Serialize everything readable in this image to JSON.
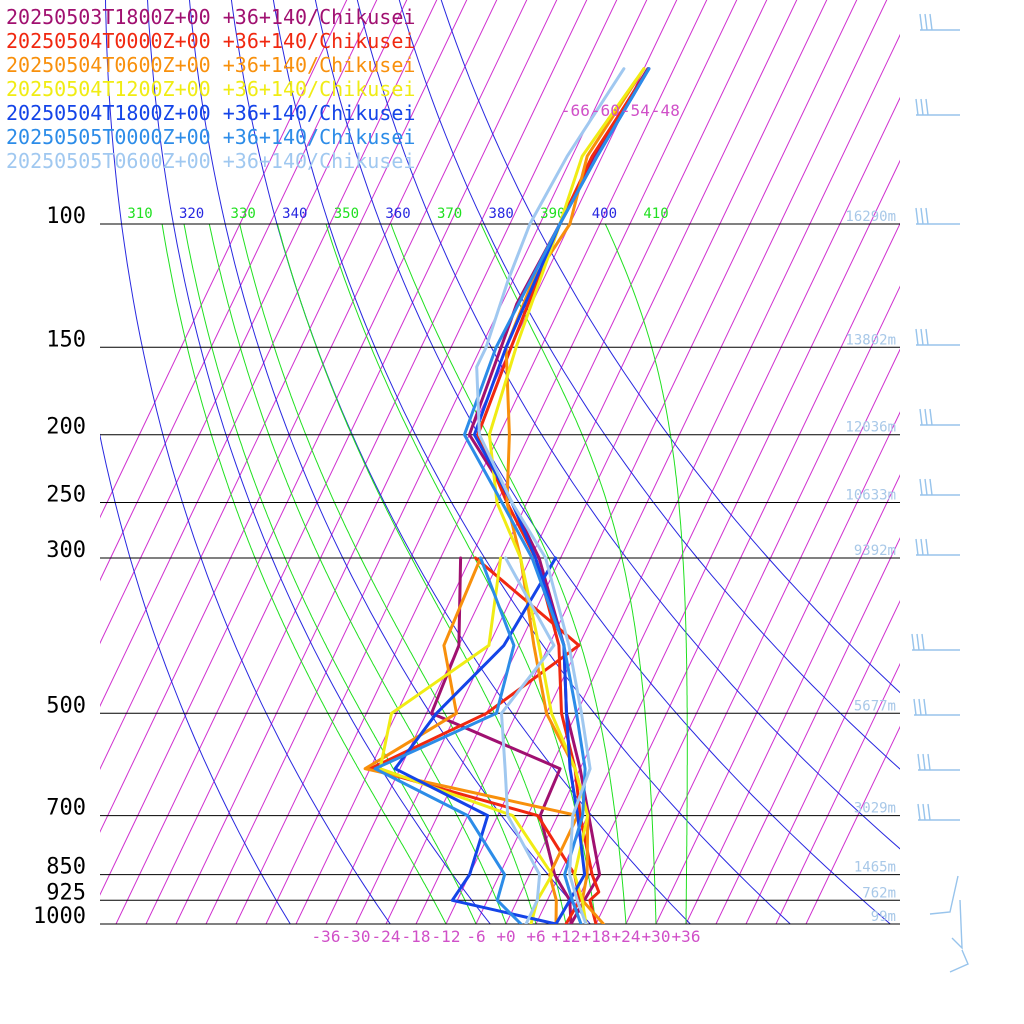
{
  "legend": [
    {
      "label": "20250503T1800Z+00 +36+140/Chikusei",
      "color": "#a01070"
    },
    {
      "label": "20250504T0000Z+00 +36+140/Chikusei",
      "color": "#f02810"
    },
    {
      "label": "20250504T0600Z+00 +36+140/Chikusei",
      "color": "#f8900c"
    },
    {
      "label": "20250504T1200Z+00 +36+140/Chikusei",
      "color": "#f0ec14"
    },
    {
      "label": "20250504T1800Z+00 +36+140/Chikusei",
      "color": "#1444e8"
    },
    {
      "label": "20250505T0000Z+00 +36+140/Chikusei",
      "color": "#2c8ce8"
    },
    {
      "label": "20250505T0600Z+00 +36+140/Chikusei",
      "color": "#a0c8f0"
    }
  ],
  "colors": {
    "isotherm": "#d030d0",
    "dry_adiabat": "#2828e0",
    "moist_adiabat": "#20e020",
    "pressure_line": "#000000",
    "height_label": "#a8c8e8",
    "wind_barb": "#98c4ec"
  },
  "chart_data": {
    "type": "line",
    "subtype": "skew-T log-P",
    "pressure_levels": [
      {
        "p": 100,
        "label": "100",
        "height": "16290m"
      },
      {
        "p": 150,
        "label": "150",
        "height": "13802m"
      },
      {
        "p": 200,
        "label": "200",
        "height": "12036m"
      },
      {
        "p": 250,
        "label": "250",
        "height": "10633m"
      },
      {
        "p": 300,
        "label": "300",
        "height": "9392m"
      },
      {
        "p": 500,
        "label": "500",
        "height": "5677m"
      },
      {
        "p": 700,
        "label": "700",
        "height": "3029m"
      },
      {
        "p": 850,
        "label": "850",
        "height": "1465m"
      },
      {
        "p": 925,
        "label": "925",
        "height": "762m"
      },
      {
        "p": 1000,
        "label": "1000",
        "height": "99m"
      }
    ],
    "x_ticks": [
      "-36",
      "-30",
      "-24",
      "-18",
      "-12",
      "-6",
      "+0",
      "+6",
      "+12",
      "+18",
      "+24",
      "+30",
      "+36"
    ],
    "top_isotherm_labels": [
      "-66",
      "-60",
      "-54",
      "-48"
    ],
    "theta_labels": [
      {
        "label": "310",
        "color": "#20e020"
      },
      {
        "label": "320",
        "color": "#2828e0"
      },
      {
        "label": "330",
        "color": "#20e020"
      },
      {
        "label": "340",
        "color": "#2828e0"
      },
      {
        "label": "350",
        "color": "#20e020"
      },
      {
        "label": "360",
        "color": "#2828e0"
      },
      {
        "label": "370",
        "color": "#20e020"
      },
      {
        "label": "380",
        "color": "#2828e0"
      },
      {
        "label": "390",
        "color": "#20e020"
      },
      {
        "label": "400",
        "color": "#2828e0"
      },
      {
        "label": "410",
        "color": "#20e020"
      }
    ],
    "xlim": [
      -40,
      40
    ],
    "ylim": [
      1000,
      100
    ],
    "series": [
      {
        "name": "20250503T1800Z+00 +36+140/Chikusei",
        "color": "#a01070",
        "temp": [
          [
            1000,
            13
          ],
          [
            925,
            13.4
          ],
          [
            850,
            14
          ],
          [
            700,
            6.2
          ],
          [
            600,
            0
          ],
          [
            500,
            -8
          ],
          [
            400,
            -15
          ],
          [
            300,
            -28.3
          ],
          [
            250,
            -39
          ],
          [
            200,
            -54
          ],
          [
            150,
            -56
          ],
          [
            130,
            -57
          ],
          [
            100,
            -56
          ],
          [
            80,
            -55.7
          ],
          [
            60,
            -53.2
          ]
        ],
        "dew": [
          [
            1000,
            13
          ],
          [
            925,
            10.5
          ],
          [
            850,
            5
          ],
          [
            700,
            -3.5
          ],
          [
            600,
            -4
          ],
          [
            500,
            -35
          ],
          [
            400,
            -36
          ],
          [
            300,
            -44
          ]
        ]
      },
      {
        "name": "20250504T0000Z+00 +36+140/Chikusei",
        "color": "#f02810",
        "temp": [
          [
            1000,
            18
          ],
          [
            925,
            14.5
          ],
          [
            900,
            15.5
          ],
          [
            850,
            12.5
          ],
          [
            700,
            4.5
          ],
          [
            600,
            -1
          ],
          [
            500,
            -9
          ],
          [
            400,
            -16
          ],
          [
            300,
            -29
          ],
          [
            250,
            -40
          ],
          [
            200,
            -52.3
          ],
          [
            150,
            -54
          ],
          [
            100,
            -56
          ],
          [
            80,
            -56
          ],
          [
            60,
            -53
          ]
        ],
        "dew": [
          [
            1000,
            12
          ],
          [
            925,
            12.5
          ],
          [
            850,
            9
          ],
          [
            700,
            -4
          ],
          [
            600,
            -42
          ],
          [
            500,
            -24
          ],
          [
            400,
            -12
          ],
          [
            300,
            -41
          ]
        ]
      },
      {
        "name": "20250504T0600Z+00 +36+140/Chikusei",
        "color": "#f8900c",
        "temp": [
          [
            1000,
            19.5
          ],
          [
            925,
            13
          ],
          [
            850,
            11.5
          ],
          [
            700,
            6
          ],
          [
            600,
            -1
          ],
          [
            500,
            -12
          ],
          [
            400,
            -21
          ],
          [
            300,
            -32
          ],
          [
            250,
            -40
          ],
          [
            200,
            -46
          ],
          [
            150,
            -55
          ],
          [
            120,
            -56
          ],
          [
            100,
            -54
          ],
          [
            80,
            -57
          ],
          [
            60,
            -54
          ]
        ],
        "dew": [
          [
            1000,
            10
          ],
          [
            925,
            7.8
          ],
          [
            850,
            4
          ],
          [
            700,
            4
          ],
          [
            600,
            -43
          ],
          [
            500,
            -30
          ],
          [
            400,
            -39
          ],
          [
            300,
            -40
          ]
        ]
      },
      {
        "name": "20250504T1200Z+00 +36+140/Chikusei",
        "color": "#f0ec14",
        "temp": [
          [
            1000,
            16
          ],
          [
            925,
            13
          ],
          [
            850,
            9
          ],
          [
            700,
            6
          ],
          [
            600,
            -1
          ],
          [
            500,
            -11
          ],
          [
            400,
            -20
          ],
          [
            300,
            -32
          ],
          [
            250,
            -42
          ],
          [
            200,
            -50
          ],
          [
            150,
            -53
          ],
          [
            100,
            -56
          ],
          [
            80,
            -58
          ],
          [
            60,
            -54
          ]
        ],
        "dew": [
          [
            1000,
            5
          ],
          [
            925,
            4
          ],
          [
            850,
            4.5
          ],
          [
            700,
            -9
          ],
          [
            600,
            -40
          ],
          [
            500,
            -43
          ],
          [
            400,
            -30
          ],
          [
            300,
            -36
          ]
        ]
      },
      {
        "name": "20250504T1800Z+00 +36+140/Chikusei",
        "color": "#1444e8",
        "temp": [
          [
            1000,
            10
          ],
          [
            925,
            10.5
          ],
          [
            850,
            11
          ],
          [
            700,
            4
          ],
          [
            600,
            -2
          ],
          [
            500,
            -8
          ],
          [
            400,
            -15
          ],
          [
            300,
            -29
          ],
          [
            250,
            -39
          ],
          [
            200,
            -53
          ],
          [
            150,
            -55
          ],
          [
            100,
            -56
          ],
          [
            80,
            -55
          ],
          [
            60,
            -53
          ]
        ],
        "dew": [
          [
            1000,
            10
          ],
          [
            925,
            -13
          ],
          [
            850,
            -12
          ],
          [
            700,
            -14
          ],
          [
            600,
            -37
          ],
          [
            500,
            -34
          ],
          [
            400,
            -27
          ],
          [
            300,
            -25
          ]
        ]
      },
      {
        "name": "20250505T0000Z+00 +36+140/Chikusei",
        "color": "#2c8ce8",
        "temp": [
          [
            1000,
            15
          ],
          [
            925,
            11
          ],
          [
            850,
            7
          ],
          [
            700,
            5
          ],
          [
            600,
            1
          ],
          [
            500,
            -6
          ],
          [
            400,
            -15
          ],
          [
            300,
            -29.7
          ],
          [
            250,
            -41
          ],
          [
            200,
            -55
          ],
          [
            150,
            -57
          ],
          [
            100,
            -56
          ],
          [
            80,
            -55
          ],
          [
            60,
            -53
          ]
        ],
        "dew": [
          [
            1000,
            3
          ],
          [
            925,
            -4
          ],
          [
            850,
            -5
          ],
          [
            700,
            -18
          ],
          [
            600,
            -41
          ],
          [
            500,
            -22
          ],
          [
            400,
            -25
          ],
          [
            300,
            -40
          ]
        ]
      },
      {
        "name": "20250505T0600Z+00 +36+140/Chikusei",
        "color": "#a0c8f0",
        "temp": [
          [
            1000,
            16
          ],
          [
            925,
            12
          ],
          [
            850,
            8
          ],
          [
            700,
            3
          ],
          [
            600,
            2
          ],
          [
            500,
            -5
          ],
          [
            400,
            -14
          ],
          [
            300,
            -27
          ],
          [
            250,
            -39
          ],
          [
            200,
            -52
          ],
          [
            160,
            -59
          ],
          [
            150,
            -59
          ],
          [
            120,
            -61
          ],
          [
            100,
            -62
          ],
          [
            80,
            -61
          ],
          [
            60,
            -58
          ]
        ],
        "dew": [
          [
            1000,
            4
          ],
          [
            925,
            4
          ],
          [
            850,
            2
          ],
          [
            700,
            -10
          ],
          [
            600,
            -15
          ],
          [
            500,
            -21
          ],
          [
            400,
            -17
          ],
          [
            300,
            -35
          ]
        ]
      }
    ],
    "title": "",
    "xlabel": "",
    "ylabel": ""
  }
}
